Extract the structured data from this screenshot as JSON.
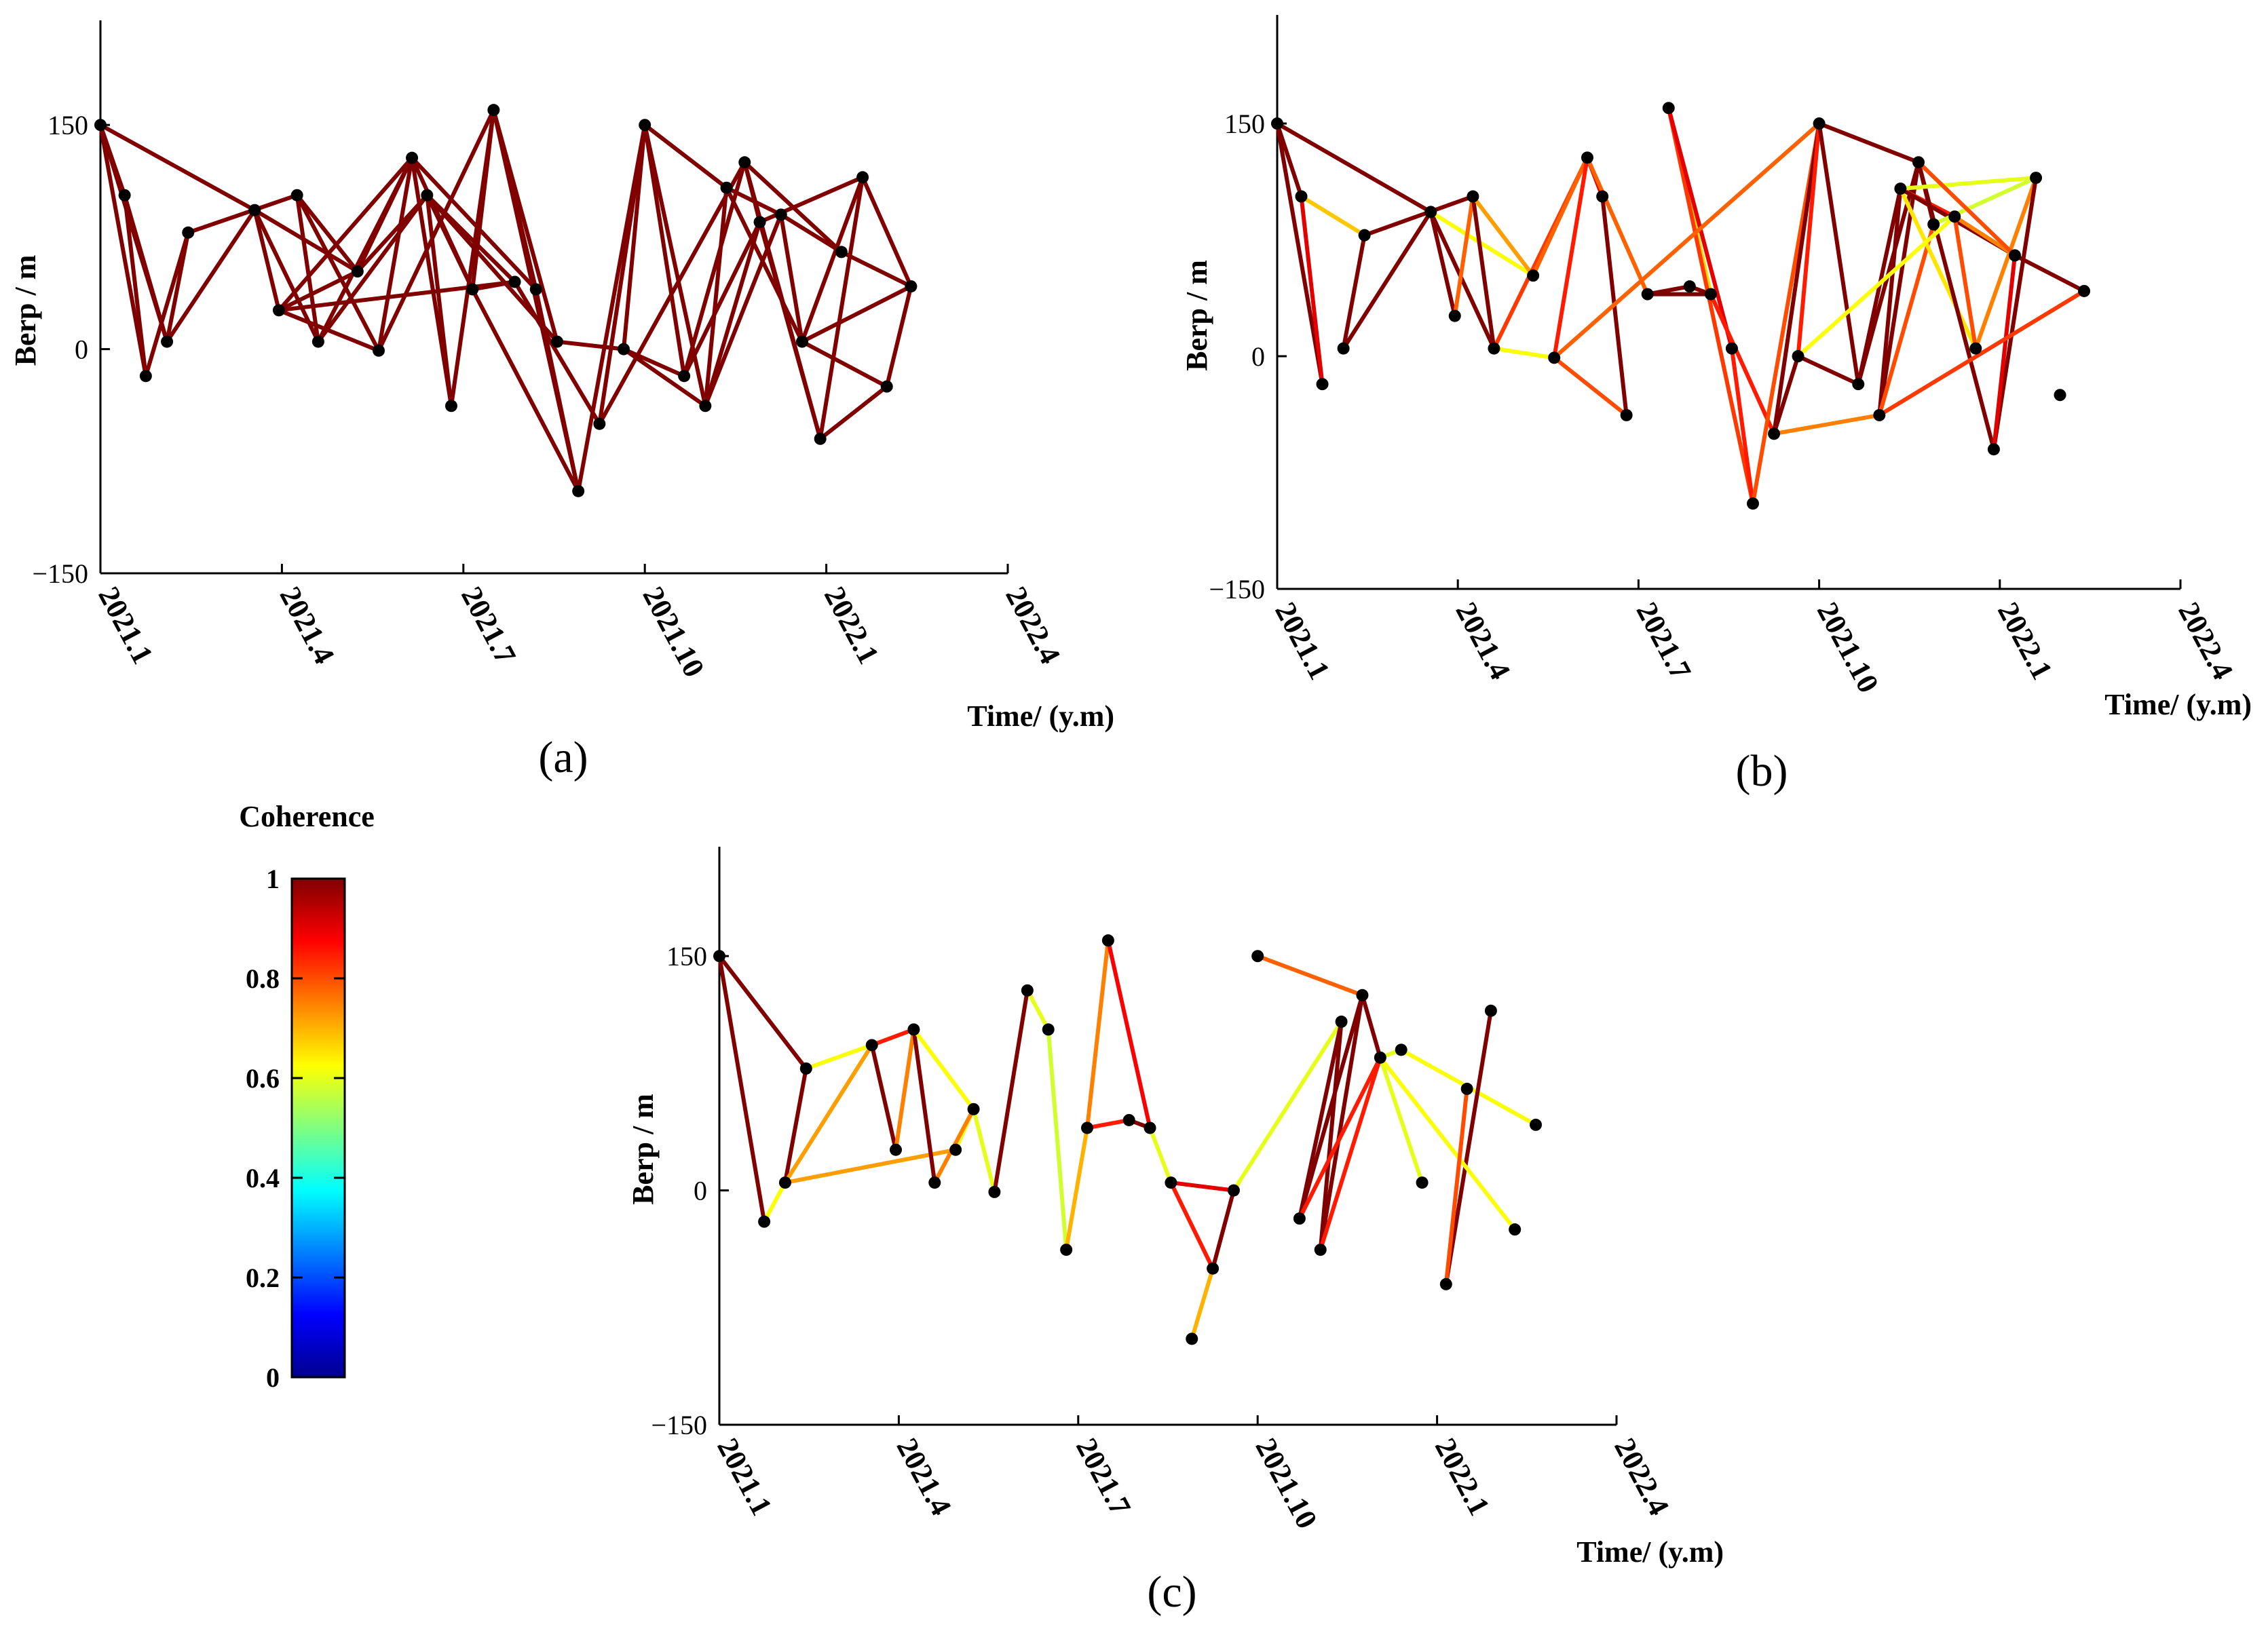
{
  "figure": {
    "colorbar": {
      "title": "Coherence",
      "ticks": [
        "0",
        "0.2",
        "0.4",
        "0.6",
        "0.8",
        "1"
      ],
      "colormap": "jet"
    }
  },
  "chart_data": [
    {
      "type": "network",
      "panel_label": "(a)",
      "xlabel": "Time/ (y.m)",
      "ylabel": "Berp / m",
      "xticks": [
        "2021.1",
        "2021.4",
        "2021.7",
        "2021.10",
        "2022.1",
        "2022.4"
      ],
      "yticks": [
        "150",
        "0",
        "−150"
      ],
      "xlim": [
        0,
        15
      ],
      "ylim": [
        -150,
        220
      ],
      "nodes": [
        [
          0,
          150
        ],
        [
          0.4,
          103
        ],
        [
          0.75,
          -18
        ],
        [
          1.1,
          5
        ],
        [
          1.45,
          78
        ],
        [
          2.55,
          93
        ],
        [
          2.95,
          26
        ],
        [
          3.25,
          103
        ],
        [
          3.6,
          5
        ],
        [
          4.25,
          52
        ],
        [
          4.6,
          -1
        ],
        [
          5.15,
          128
        ],
        [
          5.4,
          103
        ],
        [
          5.8,
          -38
        ],
        [
          6.15,
          40
        ],
        [
          6.5,
          160
        ],
        [
          6.85,
          45
        ],
        [
          7.2,
          40
        ],
        [
          7.55,
          5
        ],
        [
          7.9,
          -95
        ],
        [
          8.25,
          -50
        ],
        [
          8.65,
          0
        ],
        [
          9.0,
          150
        ],
        [
          9.65,
          -18
        ],
        [
          10.0,
          -38
        ],
        [
          10.35,
          108
        ],
        [
          10.65,
          125
        ],
        [
          10.9,
          85
        ],
        [
          11.25,
          90
        ],
        [
          11.6,
          5
        ],
        [
          11.9,
          -60
        ],
        [
          12.25,
          65
        ],
        [
          12.6,
          115
        ],
        [
          13.0,
          -25
        ],
        [
          13.4,
          42
        ]
      ],
      "edges": [
        [
          0,
          1,
          1
        ],
        [
          0,
          2,
          1
        ],
        [
          0,
          5,
          1
        ],
        [
          1,
          2,
          1
        ],
        [
          1,
          3,
          1
        ],
        [
          2,
          4,
          1
        ],
        [
          3,
          5,
          1
        ],
        [
          3,
          4,
          1
        ],
        [
          4,
          7,
          1
        ],
        [
          5,
          6,
          1
        ],
        [
          5,
          8,
          1
        ],
        [
          5,
          9,
          1
        ],
        [
          6,
          11,
          1
        ],
        [
          6,
          16,
          1
        ],
        [
          7,
          8,
          1
        ],
        [
          7,
          10,
          1
        ],
        [
          7,
          9,
          1
        ],
        [
          8,
          11,
          1
        ],
        [
          8,
          12,
          1
        ],
        [
          9,
          11,
          1
        ],
        [
          9,
          12,
          1
        ],
        [
          10,
          11,
          1
        ],
        [
          10,
          15,
          1
        ],
        [
          11,
          13,
          1
        ],
        [
          11,
          14,
          1
        ],
        [
          11,
          17,
          1
        ],
        [
          12,
          14,
          1
        ],
        [
          12,
          16,
          1
        ],
        [
          12,
          18,
          1
        ],
        [
          13,
          15,
          1
        ],
        [
          13,
          12,
          1
        ],
        [
          14,
          15,
          1
        ],
        [
          14,
          19,
          1
        ],
        [
          15,
          17,
          1
        ],
        [
          15,
          18,
          1
        ],
        [
          15,
          19,
          1
        ],
        [
          16,
          20,
          1
        ],
        [
          17,
          19,
          1
        ],
        [
          18,
          21,
          1
        ],
        [
          19,
          22,
          1
        ],
        [
          20,
          22,
          1
        ],
        [
          20,
          26,
          1
        ],
        [
          21,
          22,
          1
        ],
        [
          21,
          23,
          1
        ],
        [
          22,
          23,
          1
        ],
        [
          22,
          24,
          1
        ],
        [
          22,
          25,
          1
        ],
        [
          23,
          26,
          1
        ],
        [
          23,
          27,
          1
        ],
        [
          24,
          25,
          1
        ],
        [
          24,
          27,
          1
        ],
        [
          24,
          28,
          1
        ],
        [
          25,
          28,
          1
        ],
        [
          25,
          29,
          1
        ],
        [
          26,
          27,
          1
        ],
        [
          26,
          30,
          1
        ],
        [
          26,
          31,
          1
        ],
        [
          27,
          30,
          1
        ],
        [
          27,
          32,
          1
        ],
        [
          28,
          31,
          1
        ],
        [
          28,
          29,
          1
        ],
        [
          29,
          32,
          1
        ],
        [
          29,
          33,
          1
        ],
        [
          30,
          32,
          1
        ],
        [
          30,
          33,
          1
        ],
        [
          31,
          34,
          1
        ],
        [
          32,
          34,
          1
        ],
        [
          33,
          34,
          1
        ],
        [
          29,
          34,
          1
        ],
        [
          0,
          3,
          1
        ],
        [
          6,
          9,
          1
        ],
        [
          16,
          14,
          1
        ],
        [
          10,
          6,
          1
        ],
        [
          21,
          24,
          1
        ]
      ]
    },
    {
      "type": "network",
      "panel_label": "(b)",
      "xlabel": "Time/ (y.m)",
      "ylabel": "Berp / m",
      "xticks": [
        "2021.1",
        "2021.4",
        "2021.7",
        "2021.10",
        "2022.1",
        "2022.4"
      ],
      "yticks": [
        "150",
        "0",
        "−150"
      ],
      "xlim": [
        0,
        15
      ],
      "ylim": [
        -150,
        220
      ],
      "nodes": [
        [
          0,
          150
        ],
        [
          0.4,
          103
        ],
        [
          0.75,
          -18
        ],
        [
          1.1,
          5
        ],
        [
          1.45,
          78
        ],
        [
          2.55,
          93
        ],
        [
          2.95,
          26
        ],
        [
          3.25,
          103
        ],
        [
          3.6,
          5
        ],
        [
          4.25,
          52
        ],
        [
          4.6,
          -1
        ],
        [
          5.15,
          128
        ],
        [
          5.4,
          103
        ],
        [
          5.8,
          -38
        ],
        [
          6.15,
          40
        ],
        [
          6.5,
          160
        ],
        [
          6.85,
          45
        ],
        [
          7.2,
          40
        ],
        [
          7.55,
          5
        ],
        [
          7.9,
          -95
        ],
        [
          8.25,
          -50
        ],
        [
          8.65,
          0
        ],
        [
          9.0,
          150
        ],
        [
          9.65,
          -18
        ],
        [
          10.0,
          -38
        ],
        [
          10.35,
          108
        ],
        [
          10.65,
          125
        ],
        [
          10.9,
          85
        ],
        [
          11.25,
          90
        ],
        [
          11.6,
          5
        ],
        [
          11.9,
          -60
        ],
        [
          12.25,
          65
        ],
        [
          12.6,
          115
        ],
        [
          13.0,
          -25
        ],
        [
          13.4,
          42
        ]
      ],
      "edges": [
        [
          0,
          1,
          1
        ],
        [
          0,
          2,
          1
        ],
        [
          0,
          5,
          1
        ],
        [
          1,
          4,
          0.68
        ],
        [
          1,
          2,
          0.9
        ],
        [
          3,
          4,
          1
        ],
        [
          3,
          5,
          1
        ],
        [
          4,
          7,
          1
        ],
        [
          5,
          6,
          1
        ],
        [
          5,
          8,
          1
        ],
        [
          5,
          9,
          0.62
        ],
        [
          6,
          7,
          0.78
        ],
        [
          7,
          8,
          1
        ],
        [
          7,
          9,
          0.72
        ],
        [
          8,
          10,
          0.62
        ],
        [
          8,
          11,
          0.82
        ],
        [
          9,
          11,
          0.78
        ],
        [
          10,
          11,
          0.85
        ],
        [
          10,
          13,
          0.8
        ],
        [
          11,
          12,
          0.9
        ],
        [
          12,
          13,
          1
        ],
        [
          11,
          14,
          0.78
        ],
        [
          14,
          16,
          1
        ],
        [
          16,
          17,
          1
        ],
        [
          14,
          17,
          1
        ],
        [
          15,
          17,
          0.66
        ],
        [
          15,
          19,
          0.82
        ],
        [
          15,
          18,
          0.9
        ],
        [
          17,
          20,
          0.85
        ],
        [
          18,
          19,
          0.85
        ],
        [
          19,
          22,
          0.8
        ],
        [
          20,
          21,
          1
        ],
        [
          20,
          22,
          1
        ],
        [
          21,
          22,
          0.85
        ],
        [
          21,
          23,
          1
        ],
        [
          22,
          23,
          1
        ],
        [
          22,
          26,
          1
        ],
        [
          23,
          25,
          1
        ],
        [
          23,
          26,
          1
        ],
        [
          24,
          25,
          1
        ],
        [
          24,
          26,
          1
        ],
        [
          24,
          27,
          0.8
        ],
        [
          25,
          28,
          0.85
        ],
        [
          25,
          29,
          0.65
        ],
        [
          25,
          31,
          1
        ],
        [
          26,
          27,
          1
        ],
        [
          26,
          30,
          1
        ],
        [
          27,
          32,
          0.58
        ],
        [
          28,
          31,
          0.75
        ],
        [
          28,
          29,
          0.8
        ],
        [
          29,
          32,
          0.75
        ],
        [
          30,
          32,
          1
        ],
        [
          31,
          34,
          1
        ],
        [
          30,
          31,
          0.9
        ],
        [
          20,
          24,
          0.75
        ],
        [
          24,
          34,
          0.82
        ],
        [
          10,
          22,
          0.78
        ],
        [
          21,
          28,
          0.62
        ],
        [
          32,
          25,
          0.6
        ],
        [
          26,
          31,
          0.8
        ]
      ]
    },
    {
      "type": "network",
      "panel_label": "(c)",
      "xlabel": "Time/ (y.m)",
      "ylabel": "Berp / m",
      "xticks": [
        "2021.1",
        "2021.4",
        "2021.7",
        "2021.10",
        "2022.1",
        "2022.4"
      ],
      "yticks": [
        "150",
        "0",
        "−150"
      ],
      "xlim": [
        0,
        15
      ],
      "ylim": [
        -150,
        220
      ],
      "nodes": [
        [
          0,
          150
        ],
        [
          0.75,
          -20
        ],
        [
          1.1,
          5
        ],
        [
          1.45,
          78
        ],
        [
          2.55,
          93
        ],
        [
          2.95,
          26
        ],
        [
          3.25,
          103
        ],
        [
          3.6,
          5
        ],
        [
          3.95,
          26
        ],
        [
          4.25,
          52
        ],
        [
          4.6,
          -1
        ],
        [
          5.15,
          128
        ],
        [
          5.5,
          103
        ],
        [
          5.8,
          -38
        ],
        [
          6.15,
          40
        ],
        [
          6.5,
          160
        ],
        [
          6.85,
          45
        ],
        [
          7.2,
          40
        ],
        [
          7.55,
          5
        ],
        [
          7.9,
          -95
        ],
        [
          8.25,
          -50
        ],
        [
          8.6,
          0
        ],
        [
          9.0,
          150
        ],
        [
          9.7,
          -18
        ],
        [
          10.05,
          -38
        ],
        [
          10.4,
          108
        ],
        [
          10.75,
          125
        ],
        [
          11.05,
          85
        ],
        [
          11.4,
          90
        ],
        [
          11.75,
          5
        ],
        [
          12.15,
          -60
        ],
        [
          12.5,
          65
        ],
        [
          12.9,
          115
        ],
        [
          13.3,
          -25
        ],
        [
          13.65,
          42
        ]
      ],
      "edges": [
        [
          0,
          1,
          1
        ],
        [
          0,
          3,
          1
        ],
        [
          1,
          2,
          0.62
        ],
        [
          2,
          3,
          1
        ],
        [
          2,
          4,
          0.72
        ],
        [
          2,
          8,
          0.72
        ],
        [
          3,
          4,
          0.62
        ],
        [
          4,
          5,
          1
        ],
        [
          4,
          6,
          0.85
        ],
        [
          5,
          6,
          0.75
        ],
        [
          6,
          7,
          1
        ],
        [
          6,
          9,
          0.62
        ],
        [
          8,
          9,
          0.6
        ],
        [
          7,
          9,
          0.75
        ],
        [
          9,
          10,
          0.6
        ],
        [
          10,
          11,
          1
        ],
        [
          11,
          12,
          0.6
        ],
        [
          12,
          13,
          0.58
        ],
        [
          13,
          14,
          0.7
        ],
        [
          14,
          15,
          0.75
        ],
        [
          14,
          16,
          0.85
        ],
        [
          16,
          17,
          1
        ],
        [
          15,
          17,
          0.88
        ],
        [
          17,
          18,
          0.6
        ],
        [
          18,
          20,
          0.85
        ],
        [
          19,
          20,
          0.7
        ],
        [
          20,
          21,
          1
        ],
        [
          21,
          18,
          0.9
        ],
        [
          21,
          25,
          0.6
        ],
        [
          22,
          26,
          0.78
        ],
        [
          23,
          25,
          1
        ],
        [
          23,
          26,
          1
        ],
        [
          24,
          26,
          1
        ],
        [
          24,
          25,
          1
        ],
        [
          23,
          27,
          0.85
        ],
        [
          26,
          27,
          1
        ],
        [
          27,
          28,
          0.6
        ],
        [
          27,
          29,
          0.6
        ],
        [
          28,
          34,
          0.62
        ],
        [
          30,
          32,
          1
        ],
        [
          27,
          33,
          0.62
        ],
        [
          31,
          30,
          0.8
        ],
        [
          24,
          27,
          0.85
        ]
      ]
    }
  ]
}
